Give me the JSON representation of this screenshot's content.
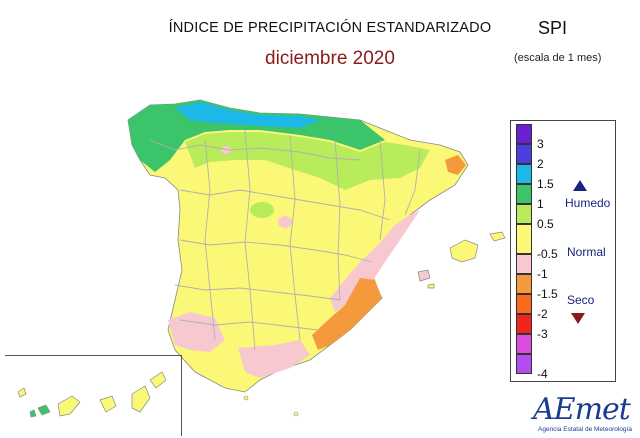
{
  "header": {
    "title": "ÍNDICE DE PRECIPITACIÓN ESTANDARIZADO",
    "subtitle": "diciembre 2020",
    "index_name": "SPI",
    "scale_note": "(escala de 1 mes)"
  },
  "legend": {
    "categories": [
      {
        "min": 3,
        "max": null,
        "color": "#6a1fd0"
      },
      {
        "min": 2,
        "max": 3,
        "color": "#4b3fe0"
      },
      {
        "min": 1.5,
        "max": 2,
        "color": "#1cb8e8"
      },
      {
        "min": 1,
        "max": 1.5,
        "color": "#3cc46a"
      },
      {
        "min": 0.5,
        "max": 1,
        "color": "#b8ec5a"
      },
      {
        "min": -0.5,
        "max": 0.5,
        "color": "#fbf878"
      },
      {
        "min": -1,
        "max": -0.5,
        "color": "#f7c8cf"
      },
      {
        "min": -1.5,
        "max": -1,
        "color": "#f59a3c"
      },
      {
        "min": -2,
        "max": -1.5,
        "color": "#fa6a1e"
      },
      {
        "min": -3,
        "max": -2,
        "color": "#f0261e"
      },
      {
        "min": -4,
        "max": -3,
        "color": "#d94ee0"
      },
      {
        "min": null,
        "max": -4,
        "color": "#b44df0"
      }
    ],
    "tick_labels": [
      "3",
      "2",
      "1.5",
      "1",
      "0.5",
      "-0.5",
      "-1",
      "-1.5",
      "-2",
      "-3",
      "-4"
    ],
    "humid_label": "Humedo",
    "normal_label": "Normal",
    "dry_label": "Seco",
    "humid_arrow_color": "#1a237e",
    "dry_arrow_color": "#8b1a1a"
  },
  "map": {
    "base_color": "#fbf878",
    "border_color": "#b0b0b0",
    "regions": [
      {
        "name": "norte-cantabrico",
        "color": "#1cb8e8"
      },
      {
        "name": "galicia-cantabria-verde",
        "color": "#3cc46a"
      },
      {
        "name": "norte-verde-claro",
        "color": "#b8ec5a"
      },
      {
        "name": "levante-sureste",
        "color": "#f59a3c"
      },
      {
        "name": "cataluna-noreste",
        "color": "#f59a3c"
      },
      {
        "name": "zonas-rosa",
        "color": "#f7c8cf"
      }
    ]
  },
  "logo": {
    "name": "AEmet",
    "subtitle": "Agencia Estatal de Meteorología"
  }
}
